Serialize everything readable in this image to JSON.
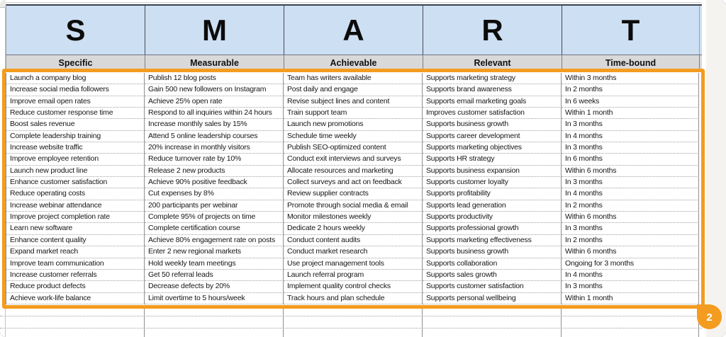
{
  "sheet": {
    "letters": [
      "S",
      "M",
      "A",
      "R",
      "T"
    ],
    "column_headers": [
      "Specific",
      "Measurable",
      "Achievable",
      "Relevant",
      "Time-bound"
    ],
    "rows": [
      [
        "Launch a company blog",
        "Publish 12 blog posts",
        "Team has writers available",
        "Supports marketing strategy",
        "Within 3 months"
      ],
      [
        "Increase social media followers",
        "Gain 500 new followers on Instagram",
        "Post daily and engage",
        "Supports brand awareness",
        "In 2 months"
      ],
      [
        "Improve email open rates",
        "Achieve 25% open rate",
        "Revise subject lines and content",
        "Supports email marketing goals",
        "In 6 weeks"
      ],
      [
        "Reduce customer response time",
        "Respond to all inquiries within 24 hours",
        "Train support team",
        "Improves customer satisfaction",
        "Within 1 month"
      ],
      [
        "Boost sales revenue",
        "Increase monthly sales by 15%",
        "Launch new promotions",
        "Supports business growth",
        "In 3 months"
      ],
      [
        "Complete leadership training",
        "Attend 5 online leadership courses",
        "Schedule time weekly",
        "Supports career development",
        "In 4 months"
      ],
      [
        "Increase website traffic",
        "20% increase in monthly visitors",
        "Publish SEO-optimized content",
        "Supports marketing objectives",
        "In 3 months"
      ],
      [
        "Improve employee retention",
        "Reduce turnover rate by 10%",
        "Conduct exit interviews and surveys",
        "Supports HR strategy",
        "In 6 months"
      ],
      [
        "Launch new product line",
        "Release 2 new products",
        "Allocate resources and marketing",
        "Supports business expansion",
        "Within 6 months"
      ],
      [
        "Enhance customer satisfaction",
        "Achieve 90% positive feedback",
        "Collect surveys and act on feedback",
        "Supports customer loyalty",
        "In 3 months"
      ],
      [
        "Reduce operating costs",
        "Cut expenses by 8%",
        "Review supplier contracts",
        "Supports profitability",
        "In 4 months"
      ],
      [
        "Increase webinar attendance",
        "200 participants per webinar",
        "Promote through social media & email",
        "Supports lead generation",
        "In 2 months"
      ],
      [
        "Improve project completion rate",
        "Complete 95% of projects on time",
        "Monitor milestones weekly",
        "Supports productivity",
        "Within 6 months"
      ],
      [
        "Learn new software",
        "Complete certification course",
        "Dedicate 2 hours weekly",
        "Supports professional growth",
        "In 3 months"
      ],
      [
        "Enhance content quality",
        "Achieve 80% engagement rate on posts",
        "Conduct content audits",
        "Supports marketing effectiveness",
        "In 2 months"
      ],
      [
        "Expand market reach",
        "Enter 2 new regional markets",
        "Conduct market research",
        "Supports business growth",
        "Within 6 months"
      ],
      [
        "Improve team communication",
        "Hold weekly team meetings",
        "Use project management tools",
        "Supports collaboration",
        "Ongoing for 3 months"
      ],
      [
        "Increase customer referrals",
        "Get 50 referral leads",
        "Launch referral program",
        "Supports sales growth",
        "In 4 months"
      ],
      [
        "Reduce product defects",
        "Decrease defects by 20%",
        "Implement quality control checks",
        "Supports customer satisfaction",
        "In 3 months"
      ],
      [
        "Achieve work-life balance",
        "Limit overtime to 5 hours/week",
        "Track hours and plan schedule",
        "Supports personal wellbeing",
        "Within 1 month"
      ]
    ]
  },
  "annotation": {
    "label": "2"
  },
  "colors": {
    "header_blue": "#cddff2",
    "header_gray": "#d9d9d9",
    "highlight_orange": "#f39c1f"
  }
}
